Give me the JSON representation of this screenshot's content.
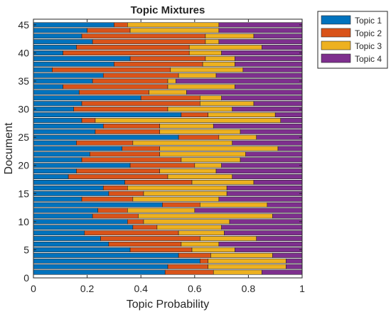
{
  "chart_data": {
    "type": "bar",
    "orientation": "horizontal",
    "stacked": true,
    "title": "Topic Mixtures",
    "xlabel": "Topic Probability",
    "ylabel": "Document",
    "xlim": [
      0,
      1
    ],
    "ylim": [
      0,
      46
    ],
    "xticks": [
      "0",
      "0.2",
      "0.4",
      "0.6",
      "0.8",
      "1"
    ],
    "yticks": [
      "0",
      "5",
      "10",
      "15",
      "20",
      "25",
      "30",
      "35",
      "40",
      "45"
    ],
    "legend_position": "outside-top-right",
    "grid": false,
    "categories": [
      1,
      2,
      3,
      4,
      5,
      6,
      7,
      8,
      9,
      10,
      11,
      12,
      13,
      14,
      15,
      16,
      17,
      18,
      19,
      20,
      21,
      22,
      23,
      24,
      25,
      26,
      27,
      28,
      29,
      30,
      31,
      32,
      33,
      34,
      35,
      36,
      37,
      38,
      39,
      40,
      41,
      42,
      43,
      44,
      45
    ],
    "series": [
      {
        "name": "Topic 1",
        "color": "#0072BD",
        "values": [
          0.49,
          0.5,
          0.62,
          0.54,
          0.36,
          0.28,
          0.25,
          0.19,
          0.37,
          0.35,
          0.22,
          0.24,
          0.48,
          0.18,
          0.28,
          0.26,
          0.34,
          0.13,
          0.16,
          0.36,
          0.18,
          0.21,
          0.33,
          0.16,
          0.54,
          0.23,
          0.26,
          0.18,
          0.55,
          0.15,
          0.18,
          0.4,
          0.17,
          0.11,
          0.22,
          0.26,
          0.07,
          0.3,
          0.36,
          0.11,
          0.16,
          0.22,
          0.18,
          0.2,
          0.3
        ]
      },
      {
        "name": "Topic 2",
        "color": "#D95319",
        "values": [
          0.18,
          0.15,
          0.03,
          0.12,
          0.23,
          0.27,
          0.37,
          0.35,
          0.09,
          0.06,
          0.17,
          0.11,
          0.14,
          0.19,
          0.13,
          0.09,
          0.25,
          0.37,
          0.31,
          0.24,
          0.37,
          0.26,
          0.14,
          0.21,
          0.15,
          0.24,
          0.21,
          0.05,
          0.1,
          0.35,
          0.44,
          0.22,
          0.26,
          0.39,
          0.28,
          0.28,
          0.44,
          0.33,
          0.28,
          0.47,
          0.42,
          0.42,
          0.46,
          0.16,
          0.05
        ]
      },
      {
        "name": "Topic 3",
        "color": "#EDB120",
        "values": [
          0.18,
          0.29,
          0.29,
          0.23,
          0.16,
          0.14,
          0.21,
          0.17,
          0.24,
          0.32,
          0.5,
          0.25,
          0.25,
          0.32,
          0.31,
          0.37,
          0.23,
          0.24,
          0.21,
          0.1,
          0.22,
          0.32,
          0.44,
          0.37,
          0.14,
          0.3,
          0.2,
          0.69,
          0.25,
          0.24,
          0.2,
          0.08,
          0.14,
          0.25,
          0.03,
          0.14,
          0.27,
          0.12,
          0.11,
          0.12,
          0.27,
          0.05,
          0.18,
          0.33,
          0.34
        ]
      },
      {
        "name": "Topic 4",
        "color": "#7E2F8E",
        "values": [
          0.15,
          0.06,
          0.06,
          0.11,
          0.25,
          0.31,
          0.17,
          0.29,
          0.3,
          0.27,
          0.11,
          0.4,
          0.13,
          0.31,
          0.28,
          0.28,
          0.18,
          0.26,
          0.32,
          0.3,
          0.23,
          0.21,
          0.09,
          0.26,
          0.17,
          0.23,
          0.33,
          0.08,
          0.1,
          0.26,
          0.18,
          0.3,
          0.43,
          0.25,
          0.47,
          0.32,
          0.22,
          0.25,
          0.25,
          0.3,
          0.15,
          0.31,
          0.18,
          0.31,
          0.31
        ]
      }
    ]
  }
}
